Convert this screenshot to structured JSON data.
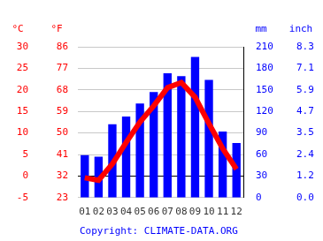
{
  "chart_data": {
    "type": "bar",
    "categories": [
      "01",
      "02",
      "03",
      "04",
      "05",
      "06",
      "07",
      "08",
      "09",
      "10",
      "11",
      "12"
    ],
    "series": [
      {
        "type": "bar",
        "axis": "y2",
        "color": "#0000ff",
        "values": [
          59,
          57,
          102,
          113,
          131,
          147,
          173,
          169,
          196,
          164,
          92,
          76
        ]
      },
      {
        "type": "line",
        "color": "#ff0000",
        "marker": "none",
        "values": [
          -0.4,
          -1,
          2.8,
          7.8,
          12.5,
          16.3,
          20.5,
          21.7,
          18.3,
          12.2,
          6.4,
          1.6
        ]
      }
    ],
    "ylabel": "°C",
    "ylim": [
      -5,
      30
    ],
    "yticks": [
      -5,
      0,
      5,
      10,
      15,
      20,
      25,
      30
    ],
    "yf_label": "°F",
    "yf_ticks": [
      {
        "value": -5,
        "label": "23"
      },
      {
        "value": 0,
        "label": "32"
      },
      {
        "value": 5,
        "label": "41"
      },
      {
        "value": 10,
        "label": "50"
      },
      {
        "value": 15,
        "label": "59"
      },
      {
        "value": 20,
        "label": "68"
      },
      {
        "value": 25,
        "label": "77"
      },
      {
        "value": 30,
        "label": "86"
      }
    ],
    "y2label": "mm",
    "y2lim": [
      0,
      210
    ],
    "y2ticks": [
      0,
      30,
      60,
      90,
      120,
      150,
      180,
      210
    ],
    "y2_inch_label": "inch",
    "y2_inch_ticks": [
      {
        "value": 0,
        "label": "0.0"
      },
      {
        "value": 30,
        "label": "1.2"
      },
      {
        "value": 60,
        "label": "2.4"
      },
      {
        "value": 90,
        "label": "3.5"
      },
      {
        "value": 120,
        "label": "4.7"
      },
      {
        "value": 150,
        "label": "5.9"
      },
      {
        "value": 180,
        "label": "7.1"
      },
      {
        "value": 210,
        "label": "8.3"
      }
    ],
    "annotations": [
      "Copyright: CLIMATE-DATA.ORG"
    ],
    "grid": true
  }
}
